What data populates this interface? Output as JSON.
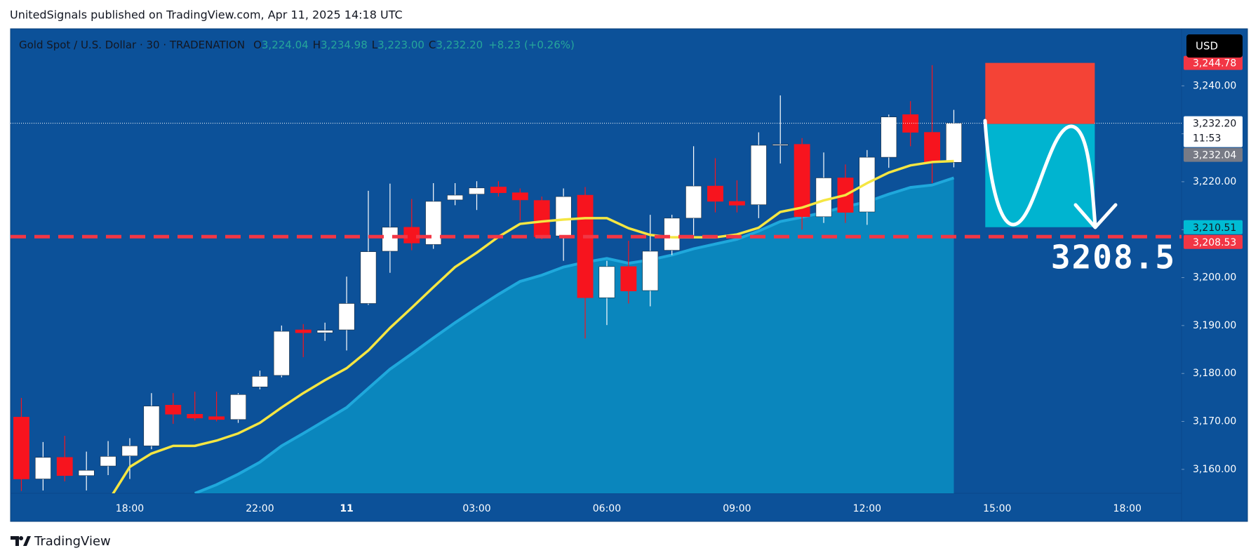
{
  "header": "UnitedSignals published on TradingView.com, Apr 11, 2025 14:18 UTC",
  "currency_button": "USD",
  "footer": "TradingView",
  "chart_data": {
    "type": "candlestick",
    "legend": {
      "symbol": "Gold Spot / U.S. Dollar · 30 · TRADENATION",
      "fields": [
        {
          "key": "O",
          "value": "3,224.04"
        },
        {
          "key": "H",
          "value": "3,234.98"
        },
        {
          "key": "L",
          "value": "3,223.00"
        },
        {
          "key": "C",
          "value": "3,232.20"
        }
      ],
      "change": "+8.23 (+0.26%)"
    },
    "categories": [
      null,
      null,
      null,
      null,
      null,
      "18:00",
      null,
      null,
      null,
      null,
      null,
      "22:00",
      null,
      null,
      null,
      "11",
      null,
      null,
      null,
      null,
      null,
      "03:00",
      null,
      null,
      null,
      null,
      null,
      "06:00",
      null,
      null,
      null,
      null,
      null,
      "09:00",
      null,
      null,
      null,
      null,
      null,
      "12:00",
      null,
      null,
      null,
      null,
      null,
      "15:00",
      null,
      null,
      null,
      null,
      null,
      "18:00",
      null,
      null
    ],
    "open": [
      3170.9,
      3158.0,
      3162.5,
      3158.7,
      3160.7,
      3162.8,
      3164.9,
      3173.4,
      3171.5,
      3171.0,
      3170.4,
      3177.2,
      3179.6,
      3189.1,
      3188.5,
      3189.1,
      3194.6,
      3205.5,
      3210.5,
      3206.9,
      3216.2,
      3217.4,
      3218.9,
      3217.7,
      3216.1,
      3208.7,
      3217.2,
      3195.8,
      3202.3,
      3197.3,
      3205.7,
      3212.4,
      3219.1,
      3215.9,
      3215.2,
      3227.7,
      3227.8,
      3212.7,
      3220.8,
      3213.7,
      3225.1,
      3234.0,
      3230.3,
      3224.04,
      null,
      null,
      null,
      null,
      null,
      null,
      null,
      null,
      null,
      null
    ],
    "high": [
      3174.9,
      3165.7,
      3167.0,
      3163.7,
      3165.9,
      3166.5,
      3175.9,
      3175.9,
      3176.2,
      3176.2,
      3175.9,
      3180.6,
      3190.0,
      3190.3,
      3190.6,
      3200.2,
      3218.1,
      3219.6,
      3216.4,
      3219.7,
      3219.7,
      3220.1,
      3220.1,
      3218.6,
      3216.9,
      3218.6,
      3218.9,
      3203.5,
      3207.7,
      3213.1,
      3213.1,
      3227.4,
      3224.9,
      3220.3,
      3230.3,
      3238.0,
      3229.1,
      3226.1,
      3223.6,
      3226.6,
      3234.0,
      3236.8,
      3244.3,
      3234.98,
      null,
      null,
      null,
      null,
      null,
      null,
      null,
      null,
      null,
      null
    ],
    "low": [
      3155.5,
      3155.6,
      3157.5,
      3155.6,
      3158.8,
      3158.0,
      3164.2,
      3169.5,
      3170.2,
      3170.0,
      3169.7,
      3176.7,
      3179.2,
      3183.4,
      3186.8,
      3184.8,
      3194.3,
      3201.0,
      3205.7,
      3206.0,
      3215.1,
      3214.1,
      3216.9,
      3211.9,
      3208.0,
      3203.5,
      3187.3,
      3190.1,
      3194.6,
      3194.0,
      3204.7,
      3208.4,
      3213.6,
      3213.6,
      3212.4,
      3223.8,
      3210.0,
      3211.4,
      3211.4,
      3211.0,
      3222.9,
      3227.4,
      3219.7,
      3223.0,
      null,
      null,
      null,
      null,
      null,
      null,
      null,
      null,
      null,
      null
    ],
    "close": [
      3158.0,
      3162.5,
      3158.7,
      3159.8,
      3162.7,
      3164.9,
      3173.2,
      3171.5,
      3170.7,
      3170.4,
      3175.6,
      3179.4,
      3188.8,
      3188.5,
      3189.0,
      3194.6,
      3205.4,
      3210.5,
      3207.2,
      3215.9,
      3217.2,
      3218.7,
      3217.7,
      3216.2,
      3208.5,
      3216.9,
      3195.8,
      3202.3,
      3197.2,
      3205.5,
      3212.4,
      3219.1,
      3215.9,
      3215.1,
      3227.6,
      3227.8,
      3212.7,
      3220.8,
      3213.6,
      3225.1,
      3233.5,
      3230.3,
      3223.97,
      3232.2,
      null,
      null,
      null,
      null,
      null,
      null,
      null,
      null,
      null,
      null
    ],
    "up_color": "#ffffff",
    "down_color": "#f7141e",
    "overlays": [
      {
        "type": "area",
        "color": "#0a86bd",
        "line_color": "#1fa8dc",
        "values": [
          null,
          null,
          null,
          null,
          null,
          null,
          null,
          null,
          3155.0,
          3156.8,
          3159.0,
          3161.5,
          3164.9,
          3167.5,
          3170.2,
          3172.9,
          3176.9,
          3180.9,
          3184.1,
          3187.4,
          3190.6,
          3193.6,
          3196.5,
          3199.2,
          3200.5,
          3202.2,
          3203.2,
          3204.0,
          3203.0,
          3203.7,
          3204.7,
          3206.0,
          3207.0,
          3208.0,
          3209.7,
          3211.7,
          3212.6,
          3213.6,
          3214.8,
          3215.8,
          3217.4,
          3218.8,
          3219.3,
          3220.8,
          null,
          null,
          null,
          null,
          null,
          null,
          null,
          null,
          null,
          null
        ]
      },
      {
        "type": "line",
        "color": "#f5e642",
        "values": [
          null,
          null,
          null,
          null,
          3153.3,
          3160.5,
          3163.3,
          3164.9,
          3164.9,
          3166.0,
          3167.5,
          3169.7,
          3172.9,
          3175.9,
          3178.6,
          3181.1,
          3184.8,
          3189.5,
          3193.7,
          3198.0,
          3202.2,
          3205.2,
          3208.5,
          3211.2,
          3211.7,
          3212.1,
          3212.4,
          3212.4,
          3210.3,
          3208.9,
          3208.4,
          3208.4,
          3208.4,
          3209.0,
          3210.4,
          3213.7,
          3214.6,
          3216.1,
          3217.2,
          3219.7,
          3221.9,
          3223.4,
          3224.1,
          3224.3,
          null,
          null,
          null,
          null,
          null,
          null,
          null,
          null,
          null,
          null
        ]
      }
    ],
    "levels": [
      {
        "value": 3208.53,
        "color": "#f23645",
        "style": "dashed"
      },
      {
        "value": 3232.2,
        "color": "#ffffff",
        "style": "dotted"
      }
    ],
    "position": {
      "stop": 3244.78,
      "entry": 3232.04,
      "target": 3210.51,
      "stop_color": "#f44336",
      "target_color": "#00b4d0"
    },
    "annotations": [
      {
        "text": "3208.5"
      }
    ],
    "ylim": [
      3155.0,
      3251.9
    ],
    "yticks": [
      {
        "value": 3160,
        "label": "3,160.00"
      },
      {
        "value": 3170,
        "label": "3,170.00"
      },
      {
        "value": 3180,
        "label": "3,180.00"
      },
      {
        "value": 3190,
        "label": "3,190.00"
      },
      {
        "value": 3200,
        "label": "3,200.00"
      },
      {
        "value": 3210,
        "label": "3,210.00"
      },
      {
        "value": 3220,
        "label": "3,220.00"
      },
      {
        "value": 3230,
        "label": "3,230.00"
      },
      {
        "value": 3240,
        "label": "3,240.00"
      }
    ],
    "price_labels": [
      {
        "value": 3244.78,
        "label": "3,244.78",
        "color": "#f23645",
        "text_color": "#ffffff"
      },
      {
        "value": 3232.2,
        "label": "3,232.20",
        "countdown": "11:53",
        "color": "#ffffff",
        "text_color": "#131722"
      },
      {
        "value": 3232.04,
        "label": "3,232.04",
        "color": "#787b86",
        "text_color": "#ffffff"
      },
      {
        "value": 3210.51,
        "label": "3,210.51",
        "color": "#00bcd4",
        "text_color": "#131722"
      },
      {
        "value": 3208.53,
        "label": "3,208.53",
        "color": "#f23645",
        "text_color": "#ffffff"
      }
    ]
  }
}
